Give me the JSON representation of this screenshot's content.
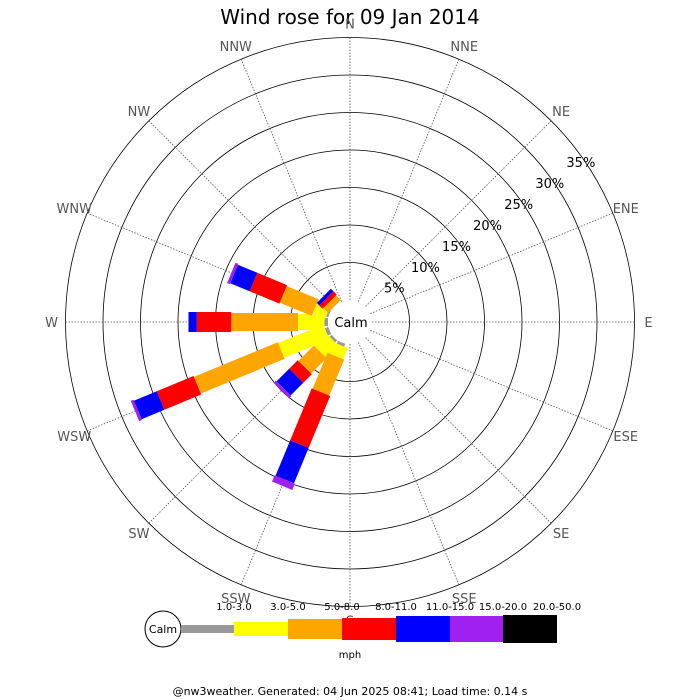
{
  "chart_data": {
    "type": "windrose",
    "title": "Wind rose for 09 Jan 2014",
    "directions": [
      "N",
      "NNE",
      "NE",
      "ENE",
      "E",
      "ESE",
      "SE",
      "SSE",
      "S",
      "SSW",
      "SW",
      "WSW",
      "W",
      "WNW",
      "NW",
      "NNW"
    ],
    "ring_values": [
      5,
      10,
      15,
      20,
      25,
      30,
      35
    ],
    "ring_labels": [
      "5%",
      "10%",
      "15%",
      "20%",
      "25%",
      "30%",
      "35%"
    ],
    "calm_label": "Calm",
    "unit": "mph",
    "bins": [
      {
        "label": "1.0-3.0",
        "color": "#999999"
      },
      {
        "label": "3.0-5.0",
        "color": "#ffff00"
      },
      {
        "label": "5.0-8.0",
        "color": "#ffa500"
      },
      {
        "label": "8.0-11.0",
        "color": "#ff0000"
      },
      {
        "label": "11.0-15.0",
        "color": "#0000ff"
      },
      {
        "label": "15.0-20.0",
        "color": "#a020f0"
      },
      {
        "label": "20.0-50.0",
        "color": "#000000"
      }
    ],
    "series": [
      {
        "direction": "W",
        "values": [
          0.5,
          3.5,
          8.9,
          4.6,
          1.1,
          0,
          0
        ]
      },
      {
        "direction": "WSW",
        "values": [
          0.5,
          6.5,
          12.1,
          5.3,
          3.3,
          0.4,
          0
        ]
      },
      {
        "direction": "SW",
        "values": [
          0.4,
          2.3,
          2.9,
          1.6,
          2.4,
          0.4,
          0
        ]
      },
      {
        "direction": "SSW",
        "values": [
          0.4,
          1.6,
          5.2,
          7.5,
          5.1,
          0.9,
          0
        ]
      },
      {
        "direction": "WNW",
        "values": [
          0.3,
          1.8,
          4.6,
          4.3,
          2.8,
          0.4,
          0
        ]
      },
      {
        "direction": "NW",
        "values": [
          0,
          0,
          0.9,
          0.6,
          0.5,
          0,
          0
        ]
      }
    ]
  },
  "legend": {
    "calm": "Calm",
    "unit": "mph"
  },
  "footer": "@nw3weather. Generated: 04 Jun 2025 08:41; Load time: 0.14 s"
}
